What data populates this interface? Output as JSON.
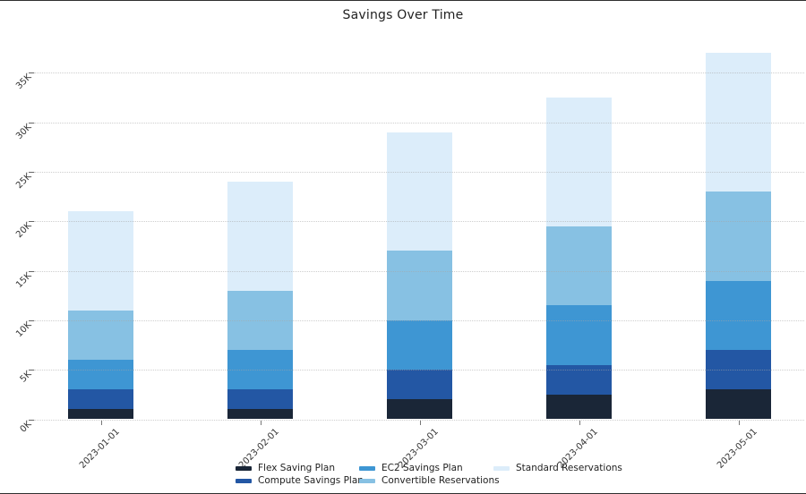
{
  "chart_data": {
    "type": "bar",
    "stacked": true,
    "title": "Savings Over Time",
    "categories": [
      "2023-01-01",
      "2023-02-01",
      "2023-03-01",
      "2023-04-01",
      "2023-05-01"
    ],
    "series": [
      {
        "name": "Flex Saving Plan",
        "color": "#1a2637",
        "values": [
          1000,
          1000,
          2000,
          2500,
          3000
        ]
      },
      {
        "name": "Compute Savings Plan",
        "color": "#2357a4",
        "values": [
          2000,
          2000,
          3000,
          3000,
          4000
        ]
      },
      {
        "name": "EC2 Savings Plan",
        "color": "#3e96d3",
        "values": [
          3000,
          4000,
          5000,
          6000,
          7000
        ]
      },
      {
        "name": "Convertible Reservations",
        "color": "#87c1e3",
        "values": [
          5000,
          6000,
          7000,
          8000,
          9000
        ]
      },
      {
        "name": "Standard Reservations",
        "color": "#dcedfa",
        "values": [
          10000,
          11000,
          12000,
          13000,
          14000
        ]
      }
    ],
    "totals": [
      21000,
      24000,
      29000,
      32500,
      37000
    ],
    "y_ticks": [
      {
        "label": "0K",
        "value": 0
      },
      {
        "label": "5K",
        "value": 5000
      },
      {
        "label": "10K",
        "value": 10000
      },
      {
        "label": "15K",
        "value": 15000
      },
      {
        "label": "20K",
        "value": 20000
      },
      {
        "label": "25K",
        "value": 25000
      },
      {
        "label": "30K",
        "value": 30000
      },
      {
        "label": "35K",
        "value": 35000
      }
    ],
    "ylim": [
      0,
      38000
    ],
    "xlabel": "",
    "ylabel": "",
    "grid": "horizontal-dotted",
    "legend_position": "bottom",
    "tick_rotation": 45
  }
}
